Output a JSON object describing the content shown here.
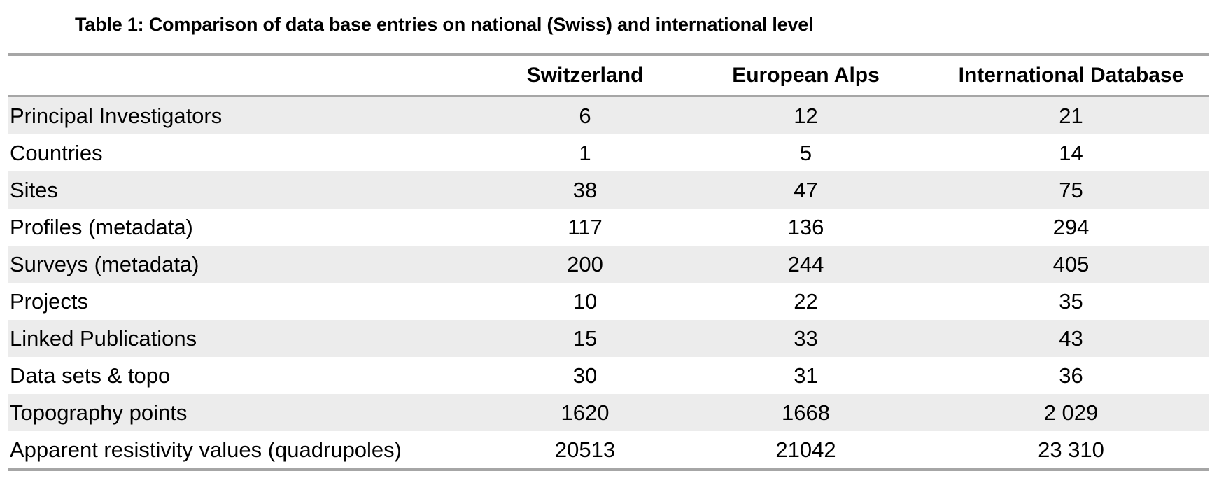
{
  "caption": "Table 1: Comparison of data base entries on national (Swiss) and international level",
  "table": {
    "headers": [
      "",
      "Switzerland",
      "European Alps",
      "International Database"
    ],
    "rows": [
      [
        "Principal Investigators",
        "6",
        "12",
        "21"
      ],
      [
        "Countries",
        "1",
        "5",
        "14"
      ],
      [
        "Sites",
        "38",
        "47",
        "75"
      ],
      [
        "Profiles (metadata)",
        "117",
        "136",
        "294"
      ],
      [
        "Surveys (metadata)",
        "200",
        "244",
        "405"
      ],
      [
        "Projects",
        "10",
        "22",
        "35"
      ],
      [
        "Linked Publications",
        "15",
        "33",
        "43"
      ],
      [
        "Data sets & topo",
        "30",
        "31",
        "36"
      ],
      [
        "Topography points",
        "1620",
        "1668",
        "2 029"
      ],
      [
        "Apparent resistivity values (quadrupoles)",
        "20513",
        "21042",
        "23 310"
      ]
    ],
    "shaded_rows": [
      0,
      2,
      4,
      6,
      8
    ],
    "shade_color": "#ececec",
    "rule_color": "#a6a6a6"
  }
}
